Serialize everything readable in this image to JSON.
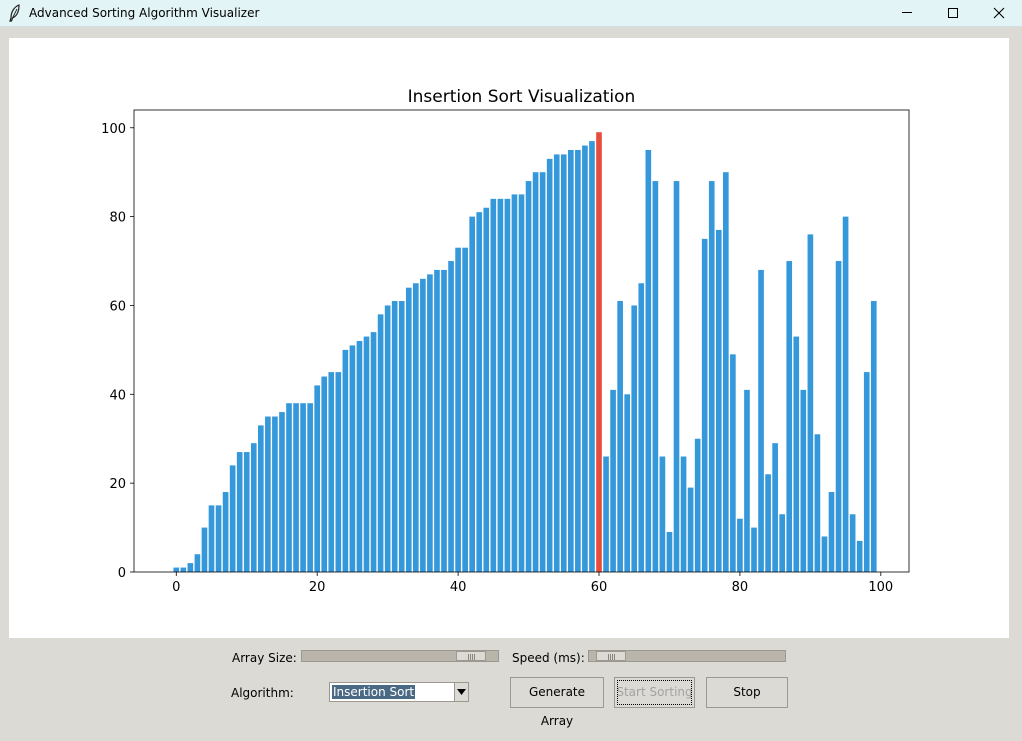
{
  "window": {
    "title": "Advanced Sorting Algorithm Visualizer",
    "app_icon": "feather-icon",
    "minimize_icon": "minimize-icon",
    "maximize_icon": "maximize-icon",
    "close_icon": "close-icon"
  },
  "controls": {
    "array_size_label": "Array Size:",
    "array_size_slider_position": 0.93,
    "speed_label": "Speed (ms):",
    "speed_slider_position": 0.04,
    "algorithm_label": "Algorithm:",
    "algorithm_selected": "Insertion Sort",
    "generate_label": "Generate Array",
    "start_label": "Start Sorting",
    "start_enabled": false,
    "stop_label": "Stop"
  },
  "chart_data": {
    "type": "bar",
    "title": "Insertion Sort Visualization",
    "xlabel": "",
    "ylabel": "",
    "xlim": [
      -6,
      104
    ],
    "ylim": [
      0,
      104
    ],
    "xticks": [
      0,
      20,
      40,
      60,
      80,
      100
    ],
    "yticks": [
      0,
      20,
      40,
      60,
      80,
      100
    ],
    "grid": false,
    "bar_color": "#3498db",
    "highlight_color": "#e74c3c",
    "highlight_index": 60,
    "values": [
      1,
      1,
      2,
      4,
      10,
      15,
      15,
      18,
      24,
      27,
      27,
      29,
      33,
      35,
      35,
      36,
      38,
      38,
      38,
      38,
      42,
      44,
      45,
      45,
      50,
      51,
      52,
      53,
      54,
      58,
      60,
      61,
      61,
      64,
      65,
      66,
      67,
      68,
      68,
      70,
      73,
      73,
      80,
      81,
      82,
      84,
      84,
      84,
      85,
      85,
      88,
      90,
      90,
      93,
      94,
      94,
      95,
      95,
      96,
      97,
      99,
      26,
      41,
      61,
      40,
      60,
      65,
      95,
      88,
      26,
      9,
      88,
      26,
      19,
      30,
      75,
      88,
      77,
      90,
      49,
      12,
      41,
      10,
      68,
      22,
      29,
      13,
      70,
      53,
      41,
      76,
      31,
      8,
      18,
      70,
      80,
      13,
      7,
      45,
      61
    ]
  }
}
